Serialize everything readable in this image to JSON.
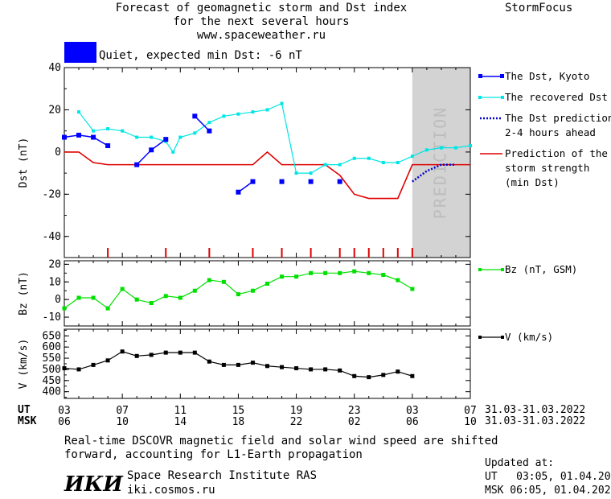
{
  "header": {
    "title_line1": "Forecast of geomagnetic storm and Dst index",
    "title_line2": "for the next several hours",
    "title_line3": "www.spaceweather.ru",
    "brand": "StormFocus",
    "status_text": "Quiet, expected min Dst: -6 nT",
    "status_color": "#0000ff"
  },
  "time_axis": {
    "ut_label": "UT",
    "msk_label": "MSK",
    "ut_ticks": [
      "03",
      "07",
      "11",
      "15",
      "19",
      "23",
      "03",
      "07"
    ],
    "msk_ticks": [
      "06",
      "10",
      "14",
      "18",
      "22",
      "02",
      "06",
      "10"
    ],
    "ut_range": "31.03-31.03.2022",
    "msk_range": "31.03-31.03.2022",
    "hours_range": [
      0,
      28
    ]
  },
  "footer": {
    "note_line1": "Real-time DSCOVR magnetic field and solar wind speed are shifted",
    "note_line2": "forward, accounting for L1-Earth propagation",
    "logo": "ИКИ",
    "org_name": "Space Research Institute RAS",
    "org_site": "iki.cosmos.ru",
    "updated_label": "Updated at:",
    "updated_ut": "UT   03:05, 01.04.2022",
    "updated_msk": "MSK 06:05, 01.04.2022"
  },
  "chart_data": [
    {
      "type": "line",
      "ylabel": "Dst (nT)",
      "ylim": [
        -50,
        40
      ],
      "yticks": [
        "40",
        "20",
        "0",
        "-20",
        "-40"
      ],
      "prediction_label": "PREDICTION",
      "prediction_start_hour": 24,
      "series": [
        {
          "name": "The Dst, Kyoto",
          "color": "#0000ff",
          "points": [
            [
              0,
              7
            ],
            [
              1,
              8
            ],
            [
              2,
              7
            ],
            [
              3,
              3
            ],
            [
              5,
              -6
            ],
            [
              6,
              1
            ],
            [
              7,
              6
            ],
            [
              9,
              17
            ],
            [
              10,
              10
            ],
            [
              12,
              -19
            ],
            [
              13,
              -14
            ],
            [
              15,
              -14
            ],
            [
              17,
              -14
            ],
            [
              19,
              -14
            ]
          ],
          "segments": [
            [
              0,
              3
            ],
            [
              4,
              6
            ],
            [
              7,
              8
            ],
            [
              9,
              10
            ]
          ]
        },
        {
          "name": "The recovered Dst",
          "color": "#00e5e5",
          "points": [
            [
              1,
              19
            ],
            [
              2,
              10
            ],
            [
              3,
              11
            ],
            [
              4,
              10
            ],
            [
              5,
              7
            ],
            [
              6,
              7
            ],
            [
              7,
              5
            ],
            [
              7.5,
              0
            ],
            [
              8,
              7
            ],
            [
              9,
              9
            ],
            [
              10,
              14
            ],
            [
              11,
              17
            ],
            [
              12,
              18
            ],
            [
              13,
              19
            ],
            [
              14,
              20
            ],
            [
              15,
              23
            ],
            [
              16,
              -10
            ],
            [
              17,
              -10
            ],
            [
              18,
              -6
            ],
            [
              19,
              -6
            ],
            [
              20,
              -3
            ],
            [
              21,
              -3
            ],
            [
              22,
              -5
            ],
            [
              23,
              -5
            ],
            [
              24,
              -2
            ],
            [
              25,
              1
            ],
            [
              26,
              2
            ],
            [
              27,
              2
            ],
            [
              28,
              3
            ]
          ]
        },
        {
          "name": "The Dst prediction\n2-4 hours ahead",
          "color": "#0000cc",
          "points": [
            [
              24,
              -14
            ],
            [
              25,
              -9
            ],
            [
              26,
              -6
            ],
            [
              27,
              -6
            ]
          ]
        },
        {
          "name": "Prediction of the\nstorm strength\n(min Dst)",
          "color": "#e00000",
          "points": [
            [
              -1,
              0
            ],
            [
              1,
              0
            ],
            [
              2,
              -5
            ],
            [
              3,
              -6
            ],
            [
              13,
              -6
            ],
            [
              14,
              0
            ],
            [
              15,
              -6
            ],
            [
              18,
              -6
            ],
            [
              19,
              -11
            ],
            [
              20,
              -20
            ],
            [
              21,
              -22
            ],
            [
              23,
              -22
            ],
            [
              24,
              -6
            ],
            [
              28,
              -6
            ]
          ]
        }
      ],
      "storm_tick_hours": [
        3,
        7,
        10,
        13,
        15,
        17,
        19,
        20,
        21,
        22,
        23,
        24
      ]
    },
    {
      "type": "line",
      "ylabel": "Bz (nT)",
      "ylim": [
        -15,
        22
      ],
      "yticks": [
        "20",
        "10",
        "0",
        "-10"
      ],
      "series": [
        {
          "name": "Bz (nT, GSM)",
          "color": "#00e000",
          "points": [
            [
              0,
              -5
            ],
            [
              1,
              1
            ],
            [
              2,
              1
            ],
            [
              3,
              -5
            ],
            [
              4,
              6
            ],
            [
              5,
              0
            ],
            [
              6,
              -2
            ],
            [
              7,
              2
            ],
            [
              8,
              1
            ],
            [
              9,
              5
            ],
            [
              10,
              11
            ],
            [
              11,
              10
            ],
            [
              12,
              3
            ],
            [
              13,
              5
            ],
            [
              14,
              9
            ],
            [
              15,
              13
            ],
            [
              16,
              13
            ],
            [
              17,
              15
            ],
            [
              18,
              15
            ],
            [
              19,
              15
            ],
            [
              20,
              16
            ],
            [
              21,
              15
            ],
            [
              22,
              14
            ],
            [
              23,
              11
            ],
            [
              24,
              6
            ]
          ]
        }
      ]
    },
    {
      "type": "line",
      "ylabel": "V (km/s)",
      "ylim": [
        370,
        680
      ],
      "yticks": [
        "650",
        "600",
        "550",
        "500",
        "450",
        "400"
      ],
      "series": [
        {
          "name": "V (km/s)",
          "color": "#000000",
          "points": [
            [
              0,
              505
            ],
            [
              1,
              500
            ],
            [
              2,
              520
            ],
            [
              3,
              540
            ],
            [
              4,
              580
            ],
            [
              5,
              560
            ],
            [
              6,
              565
            ],
            [
              7,
              575
            ],
            [
              8,
              575
            ],
            [
              9,
              575
            ],
            [
              10,
              535
            ],
            [
              11,
              520
            ],
            [
              12,
              520
            ],
            [
              13,
              530
            ],
            [
              14,
              515
            ],
            [
              15,
              510
            ],
            [
              16,
              505
            ],
            [
              17,
              500
            ],
            [
              18,
              500
            ],
            [
              19,
              495
            ],
            [
              20,
              470
            ],
            [
              21,
              465
            ],
            [
              22,
              475
            ],
            [
              23,
              490
            ],
            [
              24,
              470
            ]
          ]
        }
      ]
    }
  ]
}
